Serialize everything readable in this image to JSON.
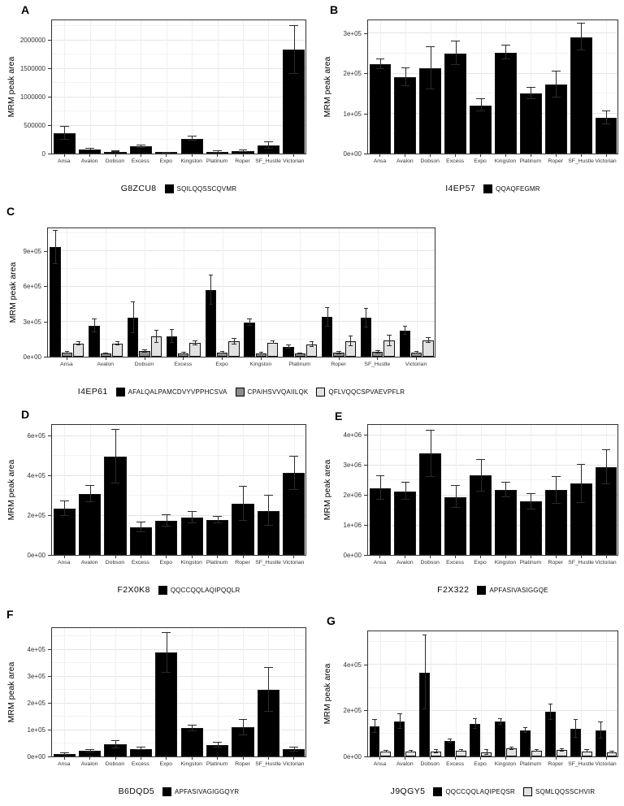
{
  "figure": {
    "ylabel": "MRM peak area",
    "cultivars": [
      "Ansa",
      "Avalon",
      "Dobson",
      "Excess",
      "Expo",
      "Kingston",
      "Platinum",
      "Roper",
      "SF_Hustle",
      "Victorian"
    ],
    "colors": {
      "black": "#000000",
      "gray": "#8c8c8c",
      "lightgray": "#e2e2e2"
    }
  },
  "chart_data": [
    {
      "panel": "A",
      "type": "bar",
      "protein": "G8ZCU8",
      "ylabel": "MRM peak area",
      "categories": [
        "Ansa",
        "Avalon",
        "Dobson",
        "Excess",
        "Expo",
        "Kingston",
        "Platinum",
        "Roper",
        "SF_Hustle",
        "Victorian"
      ],
      "series": [
        {
          "name": "SQILQQSSCQVMR",
          "color": "#000000",
          "values": [
            365000,
            70000,
            33000,
            125000,
            6000,
            265000,
            25000,
            42000,
            140000,
            1830000
          ],
          "errors": [
            115000,
            12000,
            8000,
            18000,
            3000,
            40000,
            13000,
            15000,
            55000,
            420000
          ]
        }
      ],
      "yticks": [
        {
          "v": 0,
          "label": "0"
        },
        {
          "v": 500000,
          "label": "500000"
        },
        {
          "v": 1000000,
          "label": "1000000"
        },
        {
          "v": 1500000,
          "label": "1500000"
        },
        {
          "v": 2000000,
          "label": "2000000"
        }
      ],
      "ylim": [
        0,
        2350000
      ],
      "grid": true,
      "legend_position": "bottom"
    },
    {
      "panel": "B",
      "type": "bar",
      "protein": "I4EP57",
      "ylabel": "MRM peak area",
      "categories": [
        "Ansa",
        "Avalon",
        "Dobson",
        "Excess",
        "Expo",
        "Kingston",
        "Platinum",
        "Roper",
        "SF_Hustle",
        "Victorian"
      ],
      "series": [
        {
          "name": "QQAQFEGMR",
          "color": "#000000",
          "values": [
            223000,
            190000,
            213000,
            250000,
            120000,
            252000,
            150000,
            172000,
            290000,
            89000
          ],
          "errors": [
            12000,
            22000,
            53000,
            30000,
            15000,
            17000,
            14000,
            32000,
            33000,
            17000
          ]
        }
      ],
      "yticks": [
        {
          "v": 0,
          "label": "0e+00"
        },
        {
          "v": 100000,
          "label": "1e+05"
        },
        {
          "v": 200000,
          "label": "2e+05"
        },
        {
          "v": 300000,
          "label": "3e+05"
        }
      ],
      "ylim": [
        0,
        332000
      ],
      "grid": true,
      "legend_position": "bottom"
    },
    {
      "panel": "C",
      "type": "bar",
      "protein": "I4EP61",
      "ylabel": "MRM peak area",
      "categories": [
        "Ansa",
        "Avalon",
        "Dobson",
        "Excess",
        "Expo",
        "Kingston",
        "Platinum",
        "Roper",
        "SF_Hustle",
        "Victorian"
      ],
      "series": [
        {
          "name": "AFALQALPAMCDVYVPPHCSVA",
          "color": "#000000",
          "values": [
            930000,
            260000,
            330000,
            175000,
            565000,
            290000,
            85000,
            335000,
            330000,
            220000
          ],
          "errors": [
            140000,
            55000,
            130000,
            55000,
            125000,
            30000,
            15000,
            80000,
            80000,
            35000
          ]
        },
        {
          "name": "CPAIHSVVQAIILQK",
          "color": "#8c8c8c",
          "values": [
            35000,
            25000,
            45000,
            28000,
            33000,
            28000,
            25000,
            33000,
            40000,
            35000
          ],
          "errors": [
            8000,
            5000,
            10000,
            6000,
            7000,
            5000,
            5000,
            10000,
            10000,
            7000
          ]
        },
        {
          "name": "QFLVQQCSPVAEVPFLR",
          "color": "#e2e2e2",
          "values": [
            110000,
            110000,
            170000,
            115000,
            130000,
            120000,
            105000,
            130000,
            135000,
            140000
          ],
          "errors": [
            15000,
            15000,
            50000,
            15000,
            25000,
            10000,
            20000,
            40000,
            45000,
            20000
          ]
        }
      ],
      "yticks": [
        {
          "v": 0,
          "label": "0e+00"
        },
        {
          "v": 300000,
          "label": "3e+05"
        },
        {
          "v": 600000,
          "label": "6e+05"
        },
        {
          "v": 900000,
          "label": "9e+05"
        }
      ],
      "ylim": [
        0,
        1090000
      ],
      "grid": true,
      "legend_position": "bottom"
    },
    {
      "panel": "D",
      "type": "bar",
      "protein": "F2X0K8",
      "ylabel": "MRM peak area",
      "categories": [
        "Ansa",
        "Avalon",
        "Dobson",
        "Excess",
        "Expo",
        "Kingston",
        "Platinum",
        "Roper",
        "SF_Hustle",
        "Victorian"
      ],
      "series": [
        {
          "name": "QQCCQQLAQIPQQLR",
          "color": "#000000",
          "values": [
            233000,
            307000,
            495000,
            140000,
            172000,
            188000,
            176000,
            258000,
            222000,
            412000
          ],
          "errors": [
            37000,
            42000,
            135000,
            25000,
            30000,
            27000,
            16000,
            85000,
            75000,
            85000
          ]
        }
      ],
      "yticks": [
        {
          "v": 0,
          "label": "0e+00"
        },
        {
          "v": 200000,
          "label": "2e+05"
        },
        {
          "v": 400000,
          "label": "4e+05"
        },
        {
          "v": 600000,
          "label": "6e+05"
        }
      ],
      "ylim": [
        0,
        655000
      ],
      "grid": true,
      "legend_position": "bottom"
    },
    {
      "panel": "E",
      "type": "bar",
      "protein": "F2X322",
      "ylabel": "MRM peak area",
      "categories": [
        "Ansa",
        "Avalon",
        "Dobson",
        "Excess",
        "Expo",
        "Kingston",
        "Platinum",
        "Roper",
        "SF_Hustle",
        "Victorian"
      ],
      "series": [
        {
          "name": "APFASIVASIGGQE",
          "color": "#000000",
          "values": [
            2230000,
            2120000,
            3370000,
            1930000,
            2650000,
            2170000,
            1780000,
            2160000,
            2370000,
            2930000
          ],
          "errors": [
            400000,
            280000,
            780000,
            370000,
            530000,
            250000,
            260000,
            450000,
            630000,
            570000
          ]
        }
      ],
      "yticks": [
        {
          "v": 0,
          "label": "0e+00"
        },
        {
          "v": 1000000,
          "label": "1e+06"
        },
        {
          "v": 2000000,
          "label": "2e+06"
        },
        {
          "v": 3000000,
          "label": "3e+06"
        },
        {
          "v": 4000000,
          "label": "4e+06"
        }
      ],
      "ylim": [
        0,
        4330000
      ],
      "grid": true,
      "legend_position": "bottom"
    },
    {
      "panel": "F",
      "type": "bar",
      "protein": "B6DQD5",
      "ylabel": "MRM peak area",
      "categories": [
        "Ansa",
        "Avalon",
        "Dobson",
        "Excess",
        "Expo",
        "Kingston",
        "Platinum",
        "Roper",
        "SF_Hustle",
        "Victorian"
      ],
      "series": [
        {
          "name": "APFASIVAGIGGQYR",
          "color": "#000000",
          "values": [
            9000,
            20000,
            45000,
            28000,
            388000,
            105000,
            43000,
            108000,
            250000,
            26000
          ],
          "errors": [
            3000,
            4000,
            14000,
            4000,
            75000,
            10000,
            10000,
            30000,
            82000,
            8000
          ]
        }
      ],
      "yticks": [
        {
          "v": 0,
          "label": "0e+00"
        },
        {
          "v": 100000,
          "label": "1e+05"
        },
        {
          "v": 200000,
          "label": "2e+05"
        },
        {
          "v": 300000,
          "label": "3e+05"
        },
        {
          "v": 400000,
          "label": "4e+05"
        }
      ],
      "ylim": [
        0,
        480000
      ],
      "grid": true,
      "legend_position": "bottom"
    },
    {
      "panel": "G",
      "type": "bar",
      "protein": "J9QGY5",
      "ylabel": "MRM peak area",
      "categories": [
        "Ansa",
        "Avalon",
        "Dobson",
        "Excess",
        "Expo",
        "Kingston",
        "Platinum",
        "Roper",
        "SF_Hustle",
        "Victorian"
      ],
      "series": [
        {
          "name": "QQCCQQLAQIPEQSR",
          "color": "#000000",
          "values": [
            131000,
            153000,
            366000,
            67000,
            142000,
            151000,
            114000,
            193000,
            120000,
            114000
          ],
          "errors": [
            27000,
            32000,
            160000,
            7000,
            22000,
            13000,
            10000,
            33000,
            40000,
            36000
          ]
        },
        {
          "name": "SQMLQQSSCHVIR",
          "color": "#e2e2e2",
          "values": [
            20000,
            21000,
            21000,
            26000,
            19000,
            35000,
            26000,
            27000,
            23000,
            17000
          ],
          "errors": [
            4000,
            4000,
            7000,
            4000,
            11000,
            5000,
            3000,
            4000,
            4000,
            3000
          ]
        }
      ],
      "yticks": [
        {
          "v": 0,
          "label": "0e+00"
        },
        {
          "v": 200000,
          "label": "2e+05"
        },
        {
          "v": 400000,
          "label": "4e+05"
        }
      ],
      "ylim": [
        0,
        545000
      ],
      "grid": true,
      "legend_position": "bottom"
    }
  ]
}
